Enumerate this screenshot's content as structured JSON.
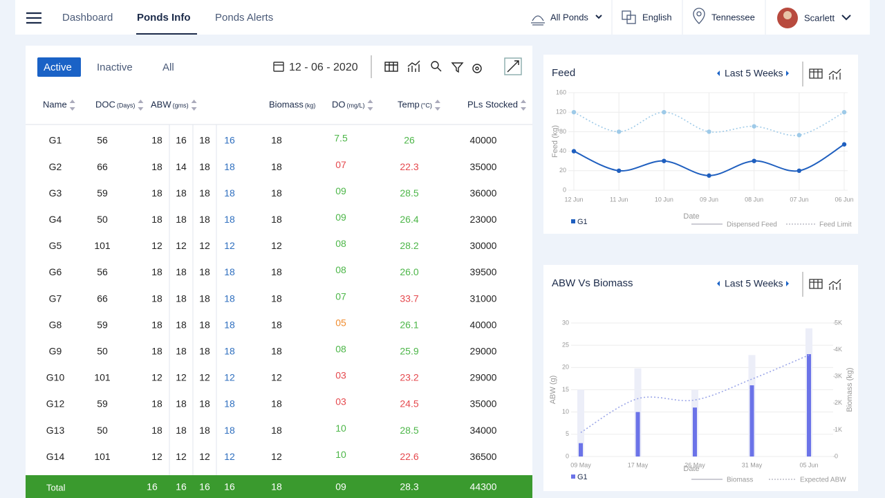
{
  "nav": {
    "items": [
      "Dashboard",
      "Ponds Info",
      "Ponds Alerts"
    ],
    "ponds": "All Ponds",
    "language": "English",
    "location": "Tennessee",
    "user": "Scarlett"
  },
  "table": {
    "tabs": [
      "Active",
      "Inactive",
      "All"
    ],
    "date": "12 - 06 - 2020",
    "columns": [
      {
        "label": "Name",
        "sortable": true
      },
      {
        "label": "DOC",
        "unit": "(Days)",
        "sortable": true
      },
      {
        "label": "ABW",
        "unit": "(gms)",
        "sortable": true
      },
      {
        "label": "Biomass",
        "unit": "(kg)",
        "sortable": false
      },
      {
        "label": "DO",
        "unit": "(mg/L)",
        "sortable": true
      },
      {
        "label": "Temp",
        "unit": "(°C)",
        "sortable": true
      },
      {
        "label": "PLs Stocked",
        "sortable": true
      }
    ],
    "rows": [
      {
        "cells": [
          "G1",
          "56",
          "18",
          "16",
          "18",
          "16",
          "18",
          "7.5",
          "26",
          "40000"
        ],
        "do_color": "#4cb648",
        "temp_color": "#4cb648"
      },
      {
        "cells": [
          "G2",
          "66",
          "18",
          "14",
          "18",
          "18",
          "18",
          "07",
          "22.3",
          "35000"
        ],
        "do_color": "#e5484d",
        "temp_color": "#e5484d"
      },
      {
        "cells": [
          "G3",
          "59",
          "18",
          "18",
          "18",
          "18",
          "18",
          "09",
          "28.5",
          "36000"
        ],
        "do_color": "#4cb648",
        "temp_color": "#4cb648"
      },
      {
        "cells": [
          "G4",
          "50",
          "18",
          "18",
          "18",
          "18",
          "18",
          "09",
          "26.4",
          "23000"
        ],
        "do_color": "#4cb648",
        "temp_color": "#4cb648"
      },
      {
        "cells": [
          "G5",
          "101",
          "12",
          "12",
          "12",
          "12",
          "12",
          "08",
          "28.2",
          "30000"
        ],
        "do_color": "#4cb648",
        "temp_color": "#4cb648"
      },
      {
        "cells": [
          "G6",
          "56",
          "18",
          "18",
          "18",
          "18",
          "18",
          "08",
          "26.0",
          "39500"
        ],
        "do_color": "#4cb648",
        "temp_color": "#4cb648"
      },
      {
        "cells": [
          "G7",
          "66",
          "18",
          "18",
          "18",
          "18",
          "18",
          "07",
          "33.7",
          "31000"
        ],
        "do_color": "#4cb648",
        "temp_color": "#e5484d"
      },
      {
        "cells": [
          "G8",
          "59",
          "18",
          "18",
          "18",
          "18",
          "18",
          "05",
          "26.1",
          "40000"
        ],
        "do_color": "#f08c2e",
        "temp_color": "#4cb648"
      },
      {
        "cells": [
          "G9",
          "50",
          "18",
          "18",
          "18",
          "18",
          "18",
          "08",
          "25.9",
          "29000"
        ],
        "do_color": "#4cb648",
        "temp_color": "#4cb648"
      },
      {
        "cells": [
          "G10",
          "101",
          "12",
          "12",
          "12",
          "12",
          "12",
          "03",
          "23.2",
          "29000"
        ],
        "do_color": "#e5484d",
        "temp_color": "#e5484d"
      },
      {
        "cells": [
          "G12",
          "59",
          "18",
          "18",
          "18",
          "18",
          "18",
          "03",
          "24.5",
          "35000"
        ],
        "do_color": "#e5484d",
        "temp_color": "#e5484d"
      },
      {
        "cells": [
          "G13",
          "50",
          "18",
          "18",
          "18",
          "18",
          "18",
          "10",
          "28.5",
          "34000"
        ],
        "do_color": "#4cb648",
        "temp_color": "#4cb648"
      },
      {
        "cells": [
          "G14",
          "101",
          "12",
          "12",
          "12",
          "12",
          "12",
          "10",
          "22.6",
          "36500"
        ],
        "do_color": "#4cb648",
        "temp_color": "#e5484d"
      }
    ],
    "total": {
      "label": "Total",
      "cells": [
        "16",
        "16",
        "16",
        "16",
        "18",
        "09",
        "28.3",
        "44300"
      ]
    }
  },
  "chart_data": [
    {
      "type": "line",
      "title": "Feed",
      "range": "Last 5 Weeks",
      "x_label": "Date",
      "y_label": "Feed (kg)",
      "categories": [
        "12 Jun",
        "11 Jun",
        "10 Jun",
        "09 Jun",
        "08 Jun",
        "07 Jun",
        "06 Jun"
      ],
      "ylim": [
        0,
        160
      ],
      "yticks": [
        0,
        20,
        40,
        80,
        120,
        160
      ],
      "grid": true,
      "legend_label": "G1",
      "legend_color": "#1f5fbf",
      "series": [
        {
          "name": "Dispensed Feed",
          "type": "line",
          "style": "solid",
          "color": "#1f5fbf",
          "values": [
            40,
            20,
            30,
            15,
            30,
            20,
            54
          ]
        },
        {
          "name": "Feed Limit",
          "type": "line",
          "style": "dotted",
          "color": "#9ecae8",
          "values": [
            120,
            80,
            120,
            80,
            91,
            73,
            120
          ]
        }
      ]
    },
    {
      "type": "bar",
      "title": "ABW Vs Biomass",
      "range": "Last 5 Weeks",
      "x_label": "Date",
      "y_label": "ABW (g)",
      "y2_label": "Biomass (kg)",
      "categories": [
        "09 May",
        "17 May",
        "26 May",
        "31 May",
        "05 Jun"
      ],
      "ylim": [
        0,
        30
      ],
      "yticks": [
        0,
        5,
        10,
        15,
        20,
        25,
        30
      ],
      "y2lim": [
        0,
        5000
      ],
      "y2ticks": [
        0,
        {
          "value": 1000,
          "label": "1K"
        },
        {
          "value": 2000,
          "label": "2K"
        },
        {
          "value": 3000,
          "label": "3K"
        },
        {
          "value": 4000,
          "label": "4K"
        },
        {
          "value": 5000,
          "label": "5K"
        }
      ],
      "grid": true,
      "series": [
        {
          "name": "G1",
          "type": "bar",
          "color": "#6b73e8",
          "values": [
            3,
            10,
            11,
            16,
            23
          ]
        },
        {
          "name": "Biomass",
          "type": "bar",
          "axis": "y2",
          "color": "#eceef8",
          "values": [
            2500,
            3300,
            2500,
            3800,
            4800
          ]
        },
        {
          "name": "Expected ABW",
          "type": "line",
          "style": "dotted",
          "color": "#9aa5e8",
          "values": [
            5.4,
            13,
            12.7,
            17.4,
            22.8
          ]
        }
      ]
    }
  ]
}
